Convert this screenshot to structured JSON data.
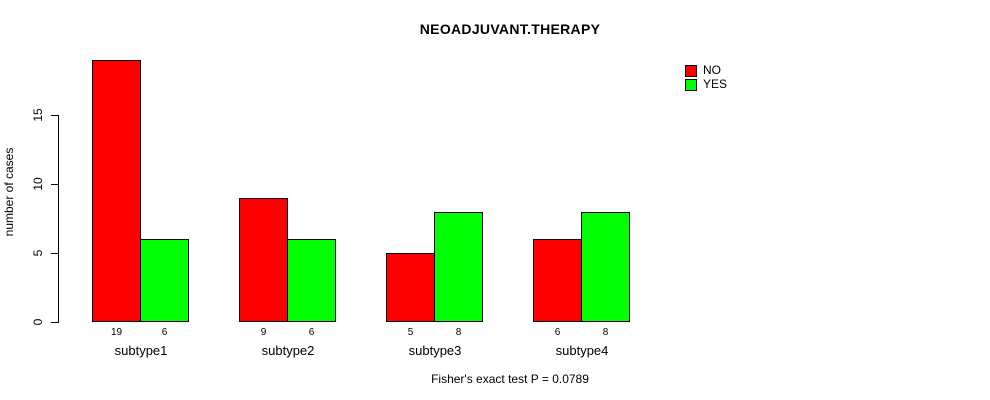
{
  "chart_data": {
    "type": "bar",
    "title": "NEOADJUVANT.THERAPY",
    "xlabel": "",
    "ylabel": "number of cases",
    "categories": [
      "subtype1",
      "subtype2",
      "subtype3",
      "subtype4"
    ],
    "series": [
      {
        "name": "NO",
        "color": "#ff0000",
        "values": [
          19,
          9,
          5,
          6
        ]
      },
      {
        "name": "YES",
        "color": "#00ff00",
        "values": [
          6,
          6,
          8,
          8
        ]
      }
    ],
    "bar_value_labels_shown": true,
    "yticks": [
      0,
      5,
      10,
      15
    ],
    "ylim": [
      0,
      19
    ],
    "grid": false,
    "legend_position": "top-right",
    "annotation": "Fisher's exact test P = 0.0789"
  },
  "colors": {
    "no": "#ff0000",
    "yes": "#00ff00",
    "axis": "#000000",
    "background": "#ffffff"
  }
}
